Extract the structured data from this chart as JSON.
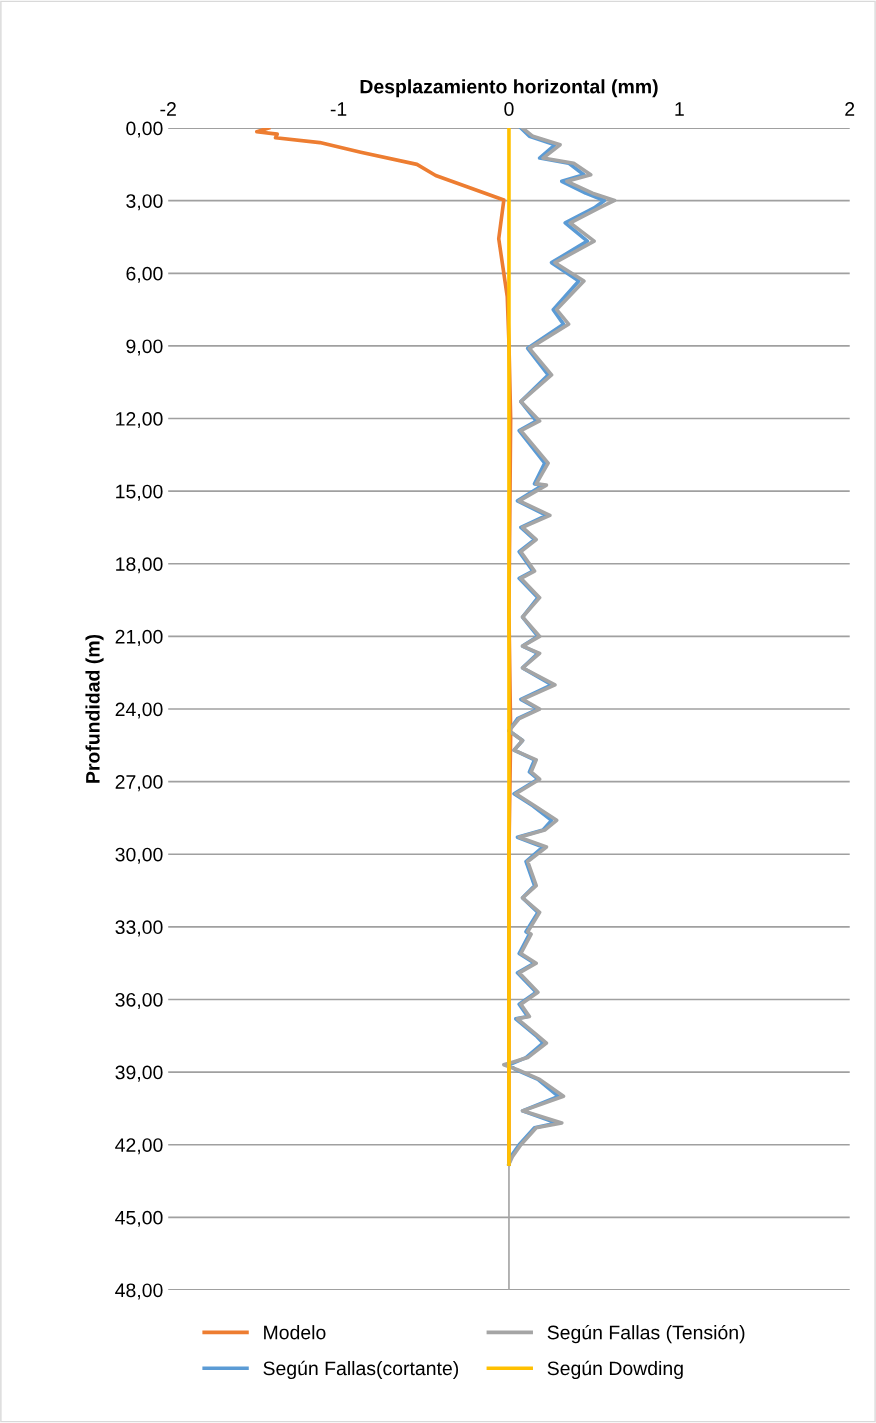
{
  "chart_data": {
    "type": "line",
    "xlabel": "Desplazamiento horizontal (mm)",
    "ylabel": "Profundidad (m)",
    "xlim": [
      -2,
      2
    ],
    "xticks": [
      -2,
      -1,
      0,
      1,
      2
    ],
    "ylim": [
      48,
      0
    ],
    "yticks": [
      {
        "value": 0,
        "label": "0,00"
      },
      {
        "value": 3,
        "label": "3,00"
      },
      {
        "value": 6,
        "label": "6,00"
      },
      {
        "value": 9,
        "label": "9,00"
      },
      {
        "value": 12,
        "label": "12,00"
      },
      {
        "value": 15,
        "label": "15,00"
      },
      {
        "value": 18,
        "label": "18,00"
      },
      {
        "value": 21,
        "label": "21,00"
      },
      {
        "value": 24,
        "label": "24,00"
      },
      {
        "value": 27,
        "label": "27,00"
      },
      {
        "value": 30,
        "label": "30,00"
      },
      {
        "value": 33,
        "label": "33,00"
      },
      {
        "value": 36,
        "label": "36,00"
      },
      {
        "value": 39,
        "label": "39,00"
      },
      {
        "value": 42,
        "label": "42,00"
      },
      {
        "value": 45,
        "label": "45,00"
      },
      {
        "value": 48,
        "label": "48,00"
      }
    ],
    "grid": "y",
    "legend": "bottom",
    "marker": "none",
    "line_style": "solid",
    "ref_lines": [
      {
        "axis": "x",
        "value": 0,
        "color": "#a5a5a5"
      }
    ],
    "series": [
      {
        "name": "Modelo",
        "color": "#ed7d31",
        "x": [
          -1.41,
          -1.48,
          -1.36,
          -1.37,
          -1.11,
          -0.87,
          -0.54,
          -0.43,
          -0.03,
          -0.06,
          -0.01,
          0.0,
          0.01,
          0.0,
          0.01,
          0.0,
          0.0
        ],
        "values": [
          0,
          0.15,
          0.25,
          0.4,
          0.6,
          1.0,
          1.5,
          1.96,
          2.97,
          4.57,
          6.97,
          8.9,
          12,
          20,
          25,
          30,
          42.8
        ]
      },
      {
        "name": "Según Fallas(cortante)",
        "color": "#5b9bd5",
        "x": [
          0.07,
          0.12,
          0.27,
          0.18,
          0.35,
          0.44,
          0.31,
          0.45,
          0.56,
          0.5,
          0.33,
          0.46,
          0.25,
          0.41,
          0.26,
          0.32,
          0.11,
          0.23,
          0.07,
          0.16,
          0.06,
          0.21,
          0.15,
          0.2,
          0.05,
          0.22,
          0.07,
          0.15,
          0.06,
          0.14,
          0.06,
          0.17,
          0.08,
          0.17,
          0.08,
          0.17,
          0.08,
          0.25,
          0.07,
          0.17,
          0.05,
          0.0,
          0.08,
          0.03,
          0.15,
          0.12,
          0.17,
          0.03,
          0.14,
          0.25,
          0.2,
          0.05,
          0.2,
          0.1,
          0.15,
          0.08,
          0.17,
          0.1,
          0.12,
          0.06,
          0.15,
          0.05,
          0.16,
          0.06,
          0.11,
          0.04,
          0.16,
          0.2,
          0.1,
          0.0,
          0.04,
          0.17,
          0.29,
          0.08,
          0.28,
          0.15,
          0.06,
          0.01,
          0.0
        ],
        "values": [
          0,
          0.34,
          0.69,
          1.24,
          1.45,
          1.93,
          2.2,
          2.69,
          2.99,
          3.3,
          3.92,
          4.67,
          5.56,
          6.32,
          7.5,
          8.1,
          9.1,
          10.2,
          11.3,
          12.1,
          12.5,
          13.84,
          14.7,
          14.75,
          15.4,
          16.0,
          16.5,
          17.0,
          17.5,
          18.3,
          18.6,
          19.4,
          20.2,
          21.0,
          21.4,
          21.7,
          22.3,
          23.0,
          23.6,
          24.0,
          24.4,
          24.9,
          25.3,
          25.7,
          26.1,
          26.6,
          26.9,
          27.5,
          28.0,
          28.6,
          29.0,
          29.3,
          29.7,
          30.3,
          31.3,
          31.8,
          32.4,
          33.2,
          33.3,
          34.1,
          34.5,
          34.9,
          35.7,
          36.2,
          36.7,
          36.8,
          37.5,
          37.8,
          38.4,
          38.7,
          38.9,
          39.3,
          40.0,
          40.6,
          41.1,
          41.3,
          42.0,
          42.5,
          42.8
        ]
      },
      {
        "name": "Según Fallas (Tensión)",
        "color": "#a5a5a5",
        "x": [
          0.08,
          0.14,
          0.3,
          0.2,
          0.38,
          0.48,
          0.34,
          0.49,
          0.62,
          0.53,
          0.36,
          0.5,
          0.27,
          0.44,
          0.28,
          0.35,
          0.12,
          0.25,
          0.07,
          0.18,
          0.07,
          0.23,
          0.16,
          0.22,
          0.06,
          0.24,
          0.08,
          0.16,
          0.07,
          0.15,
          0.07,
          0.18,
          0.08,
          0.18,
          0.08,
          0.18,
          0.08,
          0.27,
          0.08,
          0.18,
          0.06,
          0.0,
          0.08,
          0.03,
          0.16,
          0.13,
          0.18,
          0.04,
          0.15,
          0.28,
          0.21,
          0.06,
          0.22,
          0.11,
          0.16,
          0.08,
          0.18,
          0.11,
          0.13,
          0.07,
          0.16,
          0.06,
          0.17,
          0.07,
          0.12,
          0.05,
          0.17,
          0.22,
          0.11,
          -0.03,
          0.05,
          0.18,
          0.32,
          0.08,
          0.31,
          0.16,
          0.07,
          0.02,
          0.0
        ],
        "values": [
          0,
          0.34,
          0.69,
          1.24,
          1.45,
          1.93,
          2.2,
          2.69,
          2.99,
          3.3,
          3.92,
          4.67,
          5.56,
          6.32,
          7.5,
          8.1,
          9.1,
          10.2,
          11.3,
          12.1,
          12.5,
          13.84,
          14.7,
          14.75,
          15.4,
          16.0,
          16.5,
          17.0,
          17.5,
          18.3,
          18.6,
          19.4,
          20.2,
          21.0,
          21.4,
          21.7,
          22.3,
          23.0,
          23.6,
          24.0,
          24.4,
          24.9,
          25.3,
          25.7,
          26.1,
          26.6,
          26.9,
          27.5,
          28.0,
          28.6,
          29.0,
          29.3,
          29.7,
          30.3,
          31.3,
          31.8,
          32.4,
          33.2,
          33.3,
          34.1,
          34.5,
          34.9,
          35.7,
          36.2,
          36.7,
          36.8,
          37.5,
          37.8,
          38.4,
          38.7,
          38.9,
          39.3,
          40.0,
          40.6,
          41.1,
          41.3,
          42.0,
          42.5,
          42.8
        ]
      },
      {
        "name": "Según Dowding",
        "color": "#ffc000",
        "x": [
          0,
          0
        ],
        "values": [
          0,
          42.8
        ]
      }
    ]
  }
}
